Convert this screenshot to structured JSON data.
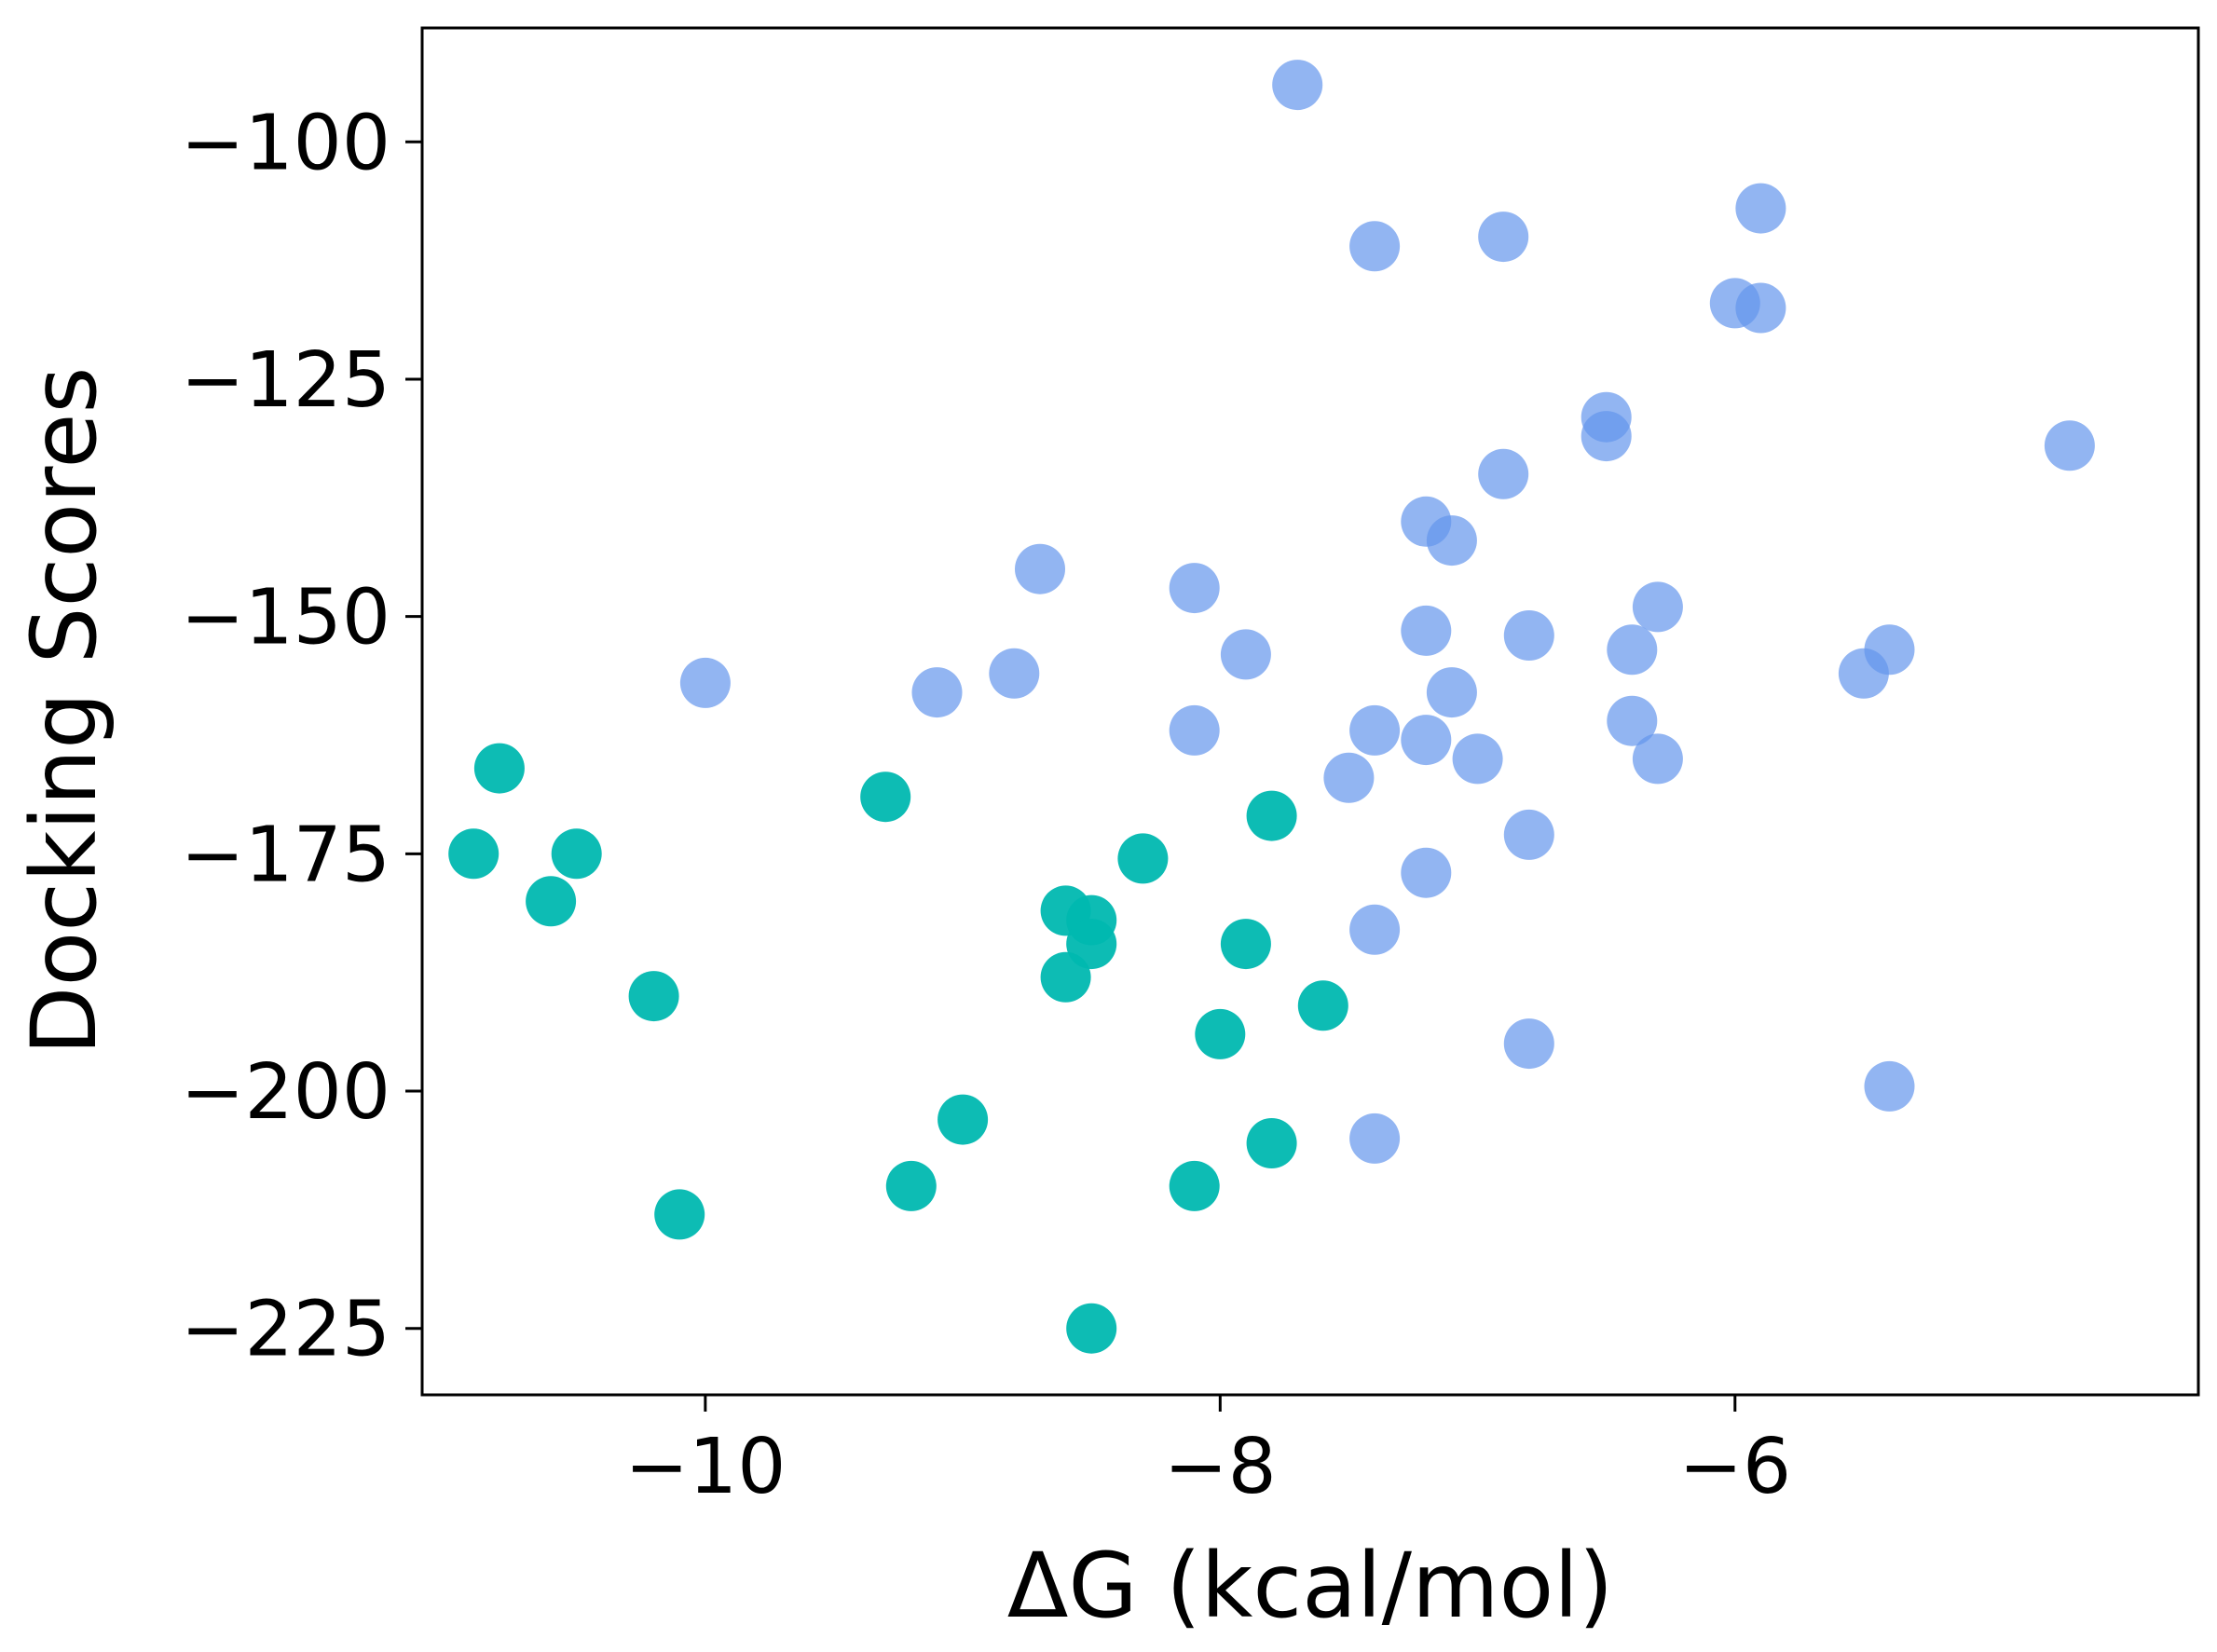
{
  "chart_data": {
    "type": "scatter",
    "title": "",
    "xlabel": "ΔG (kcal/mol)",
    "ylabel": "Docking Scores",
    "xlim": [
      -11.1,
      -4.2
    ],
    "ylim": [
      -232,
      -88
    ],
    "xticks": [
      -10,
      -8,
      -6
    ],
    "xtick_labels": [
      "−10",
      "−8",
      "−6"
    ],
    "yticks": [
      -100,
      -125,
      -150,
      -175,
      -200,
      -225
    ],
    "ytick_labels": [
      "−100",
      "−125",
      "−150",
      "−175",
      "−200",
      "−225"
    ],
    "grid": false,
    "legend": null,
    "series": [
      {
        "name": "blue",
        "color": "#6495ED",
        "opacity": 0.7,
        "points": [
          {
            "x": -7.7,
            "y": -94
          },
          {
            "x": -7.4,
            "y": -111
          },
          {
            "x": -6.9,
            "y": -110
          },
          {
            "x": -5.9,
            "y": -107
          },
          {
            "x": -6.0,
            "y": -117
          },
          {
            "x": -5.9,
            "y": -117.5
          },
          {
            "x": -6.5,
            "y": -129
          },
          {
            "x": -6.5,
            "y": -131
          },
          {
            "x": -4.7,
            "y": -132
          },
          {
            "x": -6.9,
            "y": -135
          },
          {
            "x": -7.2,
            "y": -140
          },
          {
            "x": -7.1,
            "y": -142
          },
          {
            "x": -8.7,
            "y": -145
          },
          {
            "x": -8.1,
            "y": -147
          },
          {
            "x": -6.3,
            "y": -149
          },
          {
            "x": -7.2,
            "y": -151.5
          },
          {
            "x": -6.8,
            "y": -152
          },
          {
            "x": -7.9,
            "y": -154
          },
          {
            "x": -6.4,
            "y": -153.5
          },
          {
            "x": -5.4,
            "y": -153.5
          },
          {
            "x": -8.8,
            "y": -156
          },
          {
            "x": -5.5,
            "y": -156
          },
          {
            "x": -10.0,
            "y": -157
          },
          {
            "x": -9.1,
            "y": -158
          },
          {
            "x": -7.1,
            "y": -158
          },
          {
            "x": -6.4,
            "y": -161
          },
          {
            "x": -8.1,
            "y": -162
          },
          {
            "x": -7.4,
            "y": -162
          },
          {
            "x": -7.2,
            "y": -163
          },
          {
            "x": -7.0,
            "y": -165
          },
          {
            "x": -6.3,
            "y": -165
          },
          {
            "x": -7.5,
            "y": -167
          },
          {
            "x": -6.8,
            "y": -173
          },
          {
            "x": -7.2,
            "y": -177
          },
          {
            "x": -7.4,
            "y": -183
          },
          {
            "x": -6.8,
            "y": -195
          },
          {
            "x": -5.4,
            "y": -199.5
          },
          {
            "x": -7.4,
            "y": -205
          }
        ]
      },
      {
        "name": "teal",
        "color": "#00B8B0",
        "opacity": 0.95,
        "points": [
          {
            "x": -10.8,
            "y": -166
          },
          {
            "x": -9.3,
            "y": -169
          },
          {
            "x": -7.8,
            "y": -171
          },
          {
            "x": -10.9,
            "y": -175
          },
          {
            "x": -10.5,
            "y": -175
          },
          {
            "x": -8.3,
            "y": -175.5
          },
          {
            "x": -10.6,
            "y": -180
          },
          {
            "x": -8.6,
            "y": -181
          },
          {
            "x": -8.5,
            "y": -182
          },
          {
            "x": -8.5,
            "y": -184.5
          },
          {
            "x": -7.9,
            "y": -184.5
          },
          {
            "x": -8.6,
            "y": -188
          },
          {
            "x": -10.2,
            "y": -190
          },
          {
            "x": -7.6,
            "y": -191
          },
          {
            "x": -8.0,
            "y": -194
          },
          {
            "x": -9.0,
            "y": -203
          },
          {
            "x": -7.8,
            "y": -205.5
          },
          {
            "x": -9.2,
            "y": -210
          },
          {
            "x": -8.1,
            "y": -210
          },
          {
            "x": -10.1,
            "y": -213
          },
          {
            "x": -8.5,
            "y": -225
          }
        ]
      }
    ]
  }
}
